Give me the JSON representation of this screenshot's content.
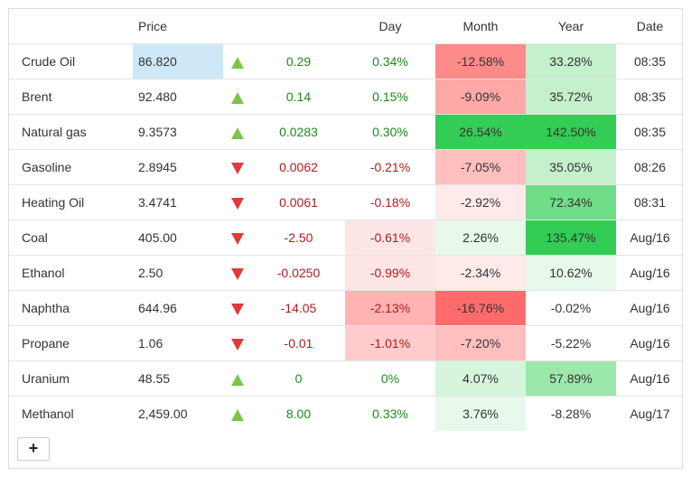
{
  "header": {
    "name": "",
    "price": "Price",
    "arrow": "",
    "change": "",
    "day": "Day",
    "month": "Month",
    "year": "Year",
    "date": "Date"
  },
  "rows": [
    {
      "name": "Crude Oil",
      "price": "86.820",
      "dir": "up",
      "change": "0.29",
      "day": "0.34%",
      "month": "-12.58%",
      "year": "33.28%",
      "date": "08:35"
    },
    {
      "name": "Brent",
      "price": "92.480",
      "dir": "up",
      "change": "0.14",
      "day": "0.15%",
      "month": "-9.09%",
      "year": "35.72%",
      "date": "08:35"
    },
    {
      "name": "Natural gas",
      "price": "9.3573",
      "dir": "up",
      "change": "0.0283",
      "day": "0.30%",
      "month": "26.54%",
      "year": "142.50%",
      "date": "08:35"
    },
    {
      "name": "Gasoline",
      "price": "2.8945",
      "dir": "down",
      "change": "0.0062",
      "day": "-0.21%",
      "month": "-7.05%",
      "year": "35.05%",
      "date": "08:26"
    },
    {
      "name": "Heating Oil",
      "price": "3.4741",
      "dir": "down",
      "change": "0.0061",
      "day": "-0.18%",
      "month": "-2.92%",
      "year": "72.34%",
      "date": "08:31"
    },
    {
      "name": "Coal",
      "price": "405.00",
      "dir": "down",
      "change": "-2.50",
      "day": "-0.61%",
      "month": "2.26%",
      "year": "135.47%",
      "date": "Aug/16"
    },
    {
      "name": "Ethanol",
      "price": "2.50",
      "dir": "down",
      "change": "-0.0250",
      "day": "-0.99%",
      "month": "-2.34%",
      "year": "10.62%",
      "date": "Aug/16"
    },
    {
      "name": "Naphtha",
      "price": "644.96",
      "dir": "down",
      "change": "-14.05",
      "day": "-2.13%",
      "month": "-16.76%",
      "year": "-0.02%",
      "date": "Aug/16"
    },
    {
      "name": "Propane",
      "price": "1.06",
      "dir": "down",
      "change": "-0.01",
      "day": "-1.01%",
      "month": "-7.20%",
      "year": "-5.22%",
      "date": "Aug/16"
    },
    {
      "name": "Uranium",
      "price": "48.55",
      "dir": "up",
      "change": "0",
      "day": "0%",
      "month": "4.07%",
      "year": "57.89%",
      "date": "Aug/16"
    },
    {
      "name": "Methanol",
      "price": "2,459.00",
      "dir": "up",
      "change": "8.00",
      "day": "0.33%",
      "month": "3.76%",
      "year": "-8.28%",
      "date": "Aug/17"
    }
  ],
  "highlighted_row": 0,
  "cell_colors": {
    "day": [
      "#ffffff",
      "#ffffff",
      "#ffffff",
      "#ffffff",
      "#ffffff",
      "#ffe6e6",
      "#ffe6e6",
      "#ffb3b3",
      "#ffcccc",
      "#ffffff",
      "#ffffff"
    ],
    "month": [
      "#ff8a8a",
      "#ffa8a8",
      "#33cc55",
      "#ffbfbf",
      "#ffeaea",
      "#e8f8ea",
      "#ffeaea",
      "#ff6b6b",
      "#ffbfbf",
      "#d6f5dc",
      "#e8f8ea"
    ],
    "year": [
      "#c4f0cc",
      "#c4f0cc",
      "#33cc55",
      "#c4f0cc",
      "#70dd88",
      "#33cc55",
      "#e8f8ea",
      "#ffffff",
      "#ffffff",
      "#9ce8aa",
      "#ffffff"
    ]
  },
  "colors": {
    "price_highlight": "#cfe8f7",
    "arrow_up": "#7bc64a",
    "arrow_down": "#e03a3a",
    "positive_text": "#1b8a1b",
    "negative_text": "#b01c1c"
  },
  "add_button": {
    "label": "+"
  }
}
